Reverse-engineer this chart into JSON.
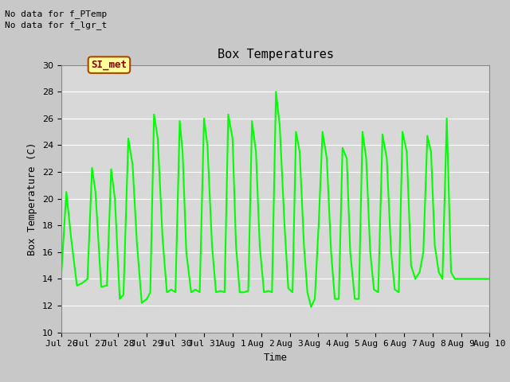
{
  "title": "Box Temperatures",
  "xlabel": "Time",
  "ylabel": "Box Temperature (C)",
  "ylim": [
    10,
    30
  ],
  "line_color": "#00FF00",
  "line_width": 1.5,
  "bg_color": "#C8C8C8",
  "plot_bg_color": "#D8D8D8",
  "annotation_text1": "No data for f_PTemp",
  "annotation_text2": "No data for f_lgr_t",
  "si_met_label": "SI_met",
  "x_tick_labels": [
    "Jul 26",
    "Jul 27",
    "Jul 28",
    "Jul 29",
    "Jul 30",
    "Jul 31",
    "Aug 1",
    "Aug 2",
    "Aug 3",
    "Aug 4",
    "Aug 5",
    "Aug 6",
    "Aug 7",
    "Aug 8",
    "Aug 9",
    "Aug 10"
  ],
  "data_x": [
    0.0,
    0.18,
    0.35,
    0.55,
    0.75,
    0.92,
    1.08,
    1.2,
    1.4,
    1.6,
    1.75,
    1.88,
    2.05,
    2.18,
    2.35,
    2.5,
    2.65,
    2.82,
    3.0,
    3.12,
    3.25,
    3.38,
    3.55,
    3.7,
    3.85,
    4.0,
    4.15,
    4.25,
    4.38,
    4.55,
    4.7,
    4.85,
    5.0,
    5.12,
    5.28,
    5.42,
    5.58,
    5.72,
    5.85,
    6.0,
    6.12,
    6.25,
    6.4,
    6.55,
    6.68,
    6.82,
    6.95,
    7.1,
    7.25,
    7.38,
    7.52,
    7.65,
    7.82,
    7.95,
    8.1,
    8.22,
    8.35,
    8.5,
    8.62,
    8.75,
    8.88,
    9.02,
    9.15,
    9.3,
    9.45,
    9.58,
    9.72,
    9.85,
    10.0,
    10.12,
    10.28,
    10.42,
    10.55,
    10.68,
    10.82,
    10.95,
    11.1,
    11.25,
    11.4,
    11.55,
    11.68,
    11.82,
    11.95,
    12.1,
    12.25,
    12.4,
    12.55,
    12.68,
    12.82,
    12.95,
    13.08,
    13.22,
    13.35,
    13.5,
    13.65,
    13.78,
    13.92,
    14.05,
    14.18,
    14.35,
    14.5,
    14.65,
    14.82,
    14.95,
    15.0
  ],
  "data_y": [
    14.2,
    20.5,
    17.0,
    13.5,
    13.7,
    14.0,
    22.3,
    20.5,
    13.4,
    13.5,
    22.2,
    20.0,
    12.5,
    12.8,
    24.5,
    22.5,
    16.7,
    12.2,
    12.5,
    13.0,
    26.3,
    24.5,
    17.0,
    13.0,
    13.2,
    13.0,
    25.8,
    23.5,
    16.0,
    13.0,
    13.2,
    13.0,
    26.0,
    24.0,
    16.5,
    13.0,
    13.1,
    13.0,
    26.3,
    24.5,
    16.5,
    13.0,
    13.0,
    13.1,
    25.8,
    23.5,
    16.5,
    13.0,
    13.1,
    13.0,
    28.0,
    25.5,
    18.0,
    13.3,
    13.0,
    25.0,
    23.5,
    16.5,
    13.0,
    11.9,
    12.5,
    18.3,
    25.0,
    23.0,
    16.0,
    12.5,
    12.5,
    23.8,
    23.0,
    16.0,
    12.5,
    12.5,
    25.0,
    23.0,
    16.0,
    13.2,
    13.0,
    24.8,
    23.0,
    16.0,
    13.2,
    13.0,
    25.0,
    23.5,
    15.0,
    14.0,
    14.5,
    16.0,
    24.7,
    23.5,
    16.5,
    14.5,
    14.0,
    26.0,
    14.5,
    14.0,
    14.0,
    14.0,
    14.0,
    14.0,
    14.0,
    14.0,
    14.0,
    14.0,
    14.0
  ],
  "font_size_title": 11,
  "font_size_axis": 9,
  "font_size_tick": 8,
  "font_size_annot": 8
}
